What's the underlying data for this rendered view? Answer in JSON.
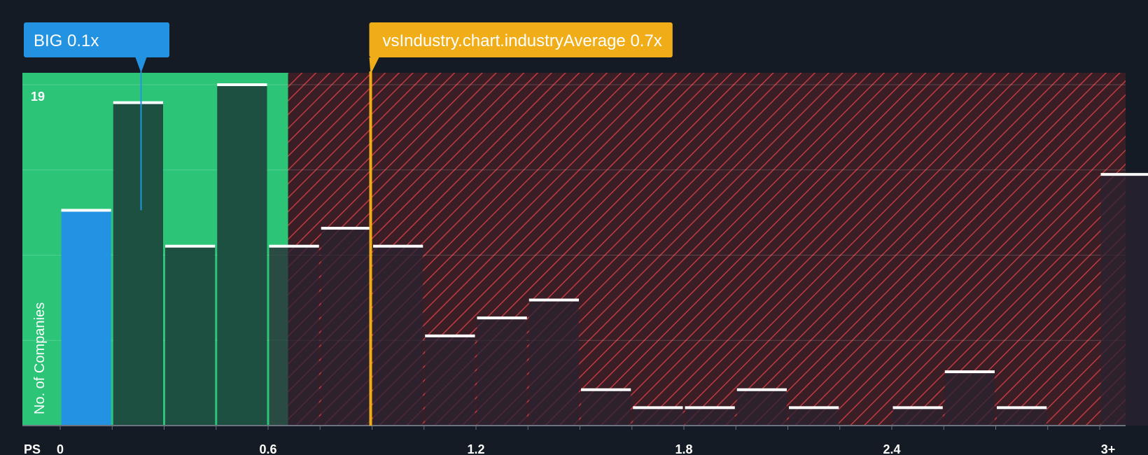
{
  "chart_data": {
    "type": "bar",
    "xlabel": "PS",
    "ylabel": "No. of Companies",
    "y_tick_label": "19",
    "ylim": [
      0,
      19
    ],
    "x_ticks": [
      "0",
      "0.6",
      "1.2",
      "1.8",
      "2.4",
      "3+"
    ],
    "bin_width": 0.15,
    "bars": [
      {
        "x_start": 0.0,
        "value": 12
      },
      {
        "x_start": 0.15,
        "value": 18
      },
      {
        "x_start": 0.3,
        "value": 10
      },
      {
        "x_start": 0.45,
        "value": 19
      },
      {
        "x_start": 0.6,
        "value": 10
      },
      {
        "x_start": 0.75,
        "value": 11
      },
      {
        "x_start": 0.9,
        "value": 10
      },
      {
        "x_start": 1.05,
        "value": 5
      },
      {
        "x_start": 1.2,
        "value": 6
      },
      {
        "x_start": 1.35,
        "value": 7
      },
      {
        "x_start": 1.5,
        "value": 2
      },
      {
        "x_start": 1.65,
        "value": 1
      },
      {
        "x_start": 1.8,
        "value": 1
      },
      {
        "x_start": 1.95,
        "value": 2
      },
      {
        "x_start": 2.1,
        "value": 1
      },
      {
        "x_start": 2.25,
        "value": 0
      },
      {
        "x_start": 2.4,
        "value": 1
      },
      {
        "x_start": 2.55,
        "value": 3
      },
      {
        "x_start": 2.7,
        "value": 1
      },
      {
        "x_start": 2.85,
        "value": 0
      },
      {
        "x_start": 3.0,
        "value": 14
      }
    ],
    "highlight": {
      "label": "BIG 0.1x",
      "value": 0.1,
      "bar_index": 0
    },
    "industry_average": {
      "label": "vsIndustry.chart.industryAverage 0.7x",
      "value": 0.7
    },
    "fair_range_max": 0.7
  },
  "colors": {
    "background": "#151b24",
    "fair_zone": "#2cc477",
    "overvalued_zone": "#3a1e25",
    "hatch": "#c03b41",
    "highlight_bar": "#2393e1",
    "industry_line": "#f0ad18",
    "bar_dark": "#1d4a3f",
    "bar_over": "#2a2332",
    "bar_cap": "#ffffff",
    "axis_text": "#ffffff"
  }
}
